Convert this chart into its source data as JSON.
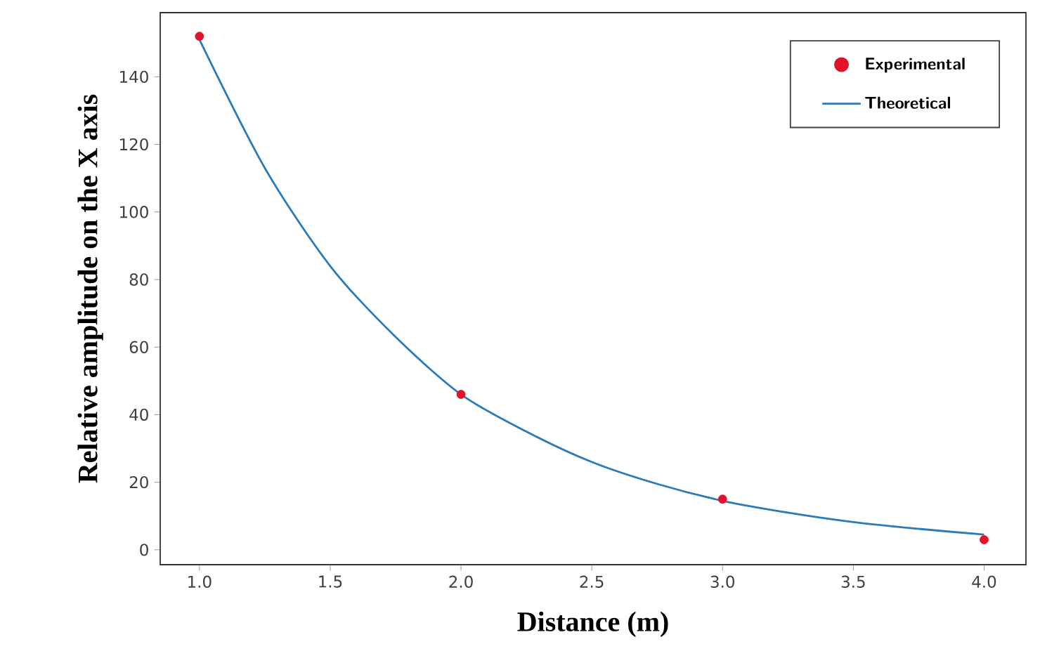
{
  "chart_data": {
    "type": "line",
    "xlabel": "Distance (m)",
    "ylabel": "Relative amplitude on the X axis",
    "xlim": [
      0.85,
      4.16
    ],
    "ylim": [
      -4.4,
      159
    ],
    "xticks": [
      {
        "value": 1.0,
        "label": "1.0"
      },
      {
        "value": 1.5,
        "label": "1.5"
      },
      {
        "value": 2.0,
        "label": "2.0"
      },
      {
        "value": 2.5,
        "label": "2.5"
      },
      {
        "value": 3.0,
        "label": "3.0"
      },
      {
        "value": 3.5,
        "label": "3.5"
      },
      {
        "value": 4.0,
        "label": "4.0"
      }
    ],
    "yticks": [
      0,
      20,
      40,
      60,
      80,
      100,
      120,
      140
    ],
    "grid": false,
    "legend": "top right",
    "series": [
      {
        "name": "Experimental",
        "type": "scatter",
        "marker": "circle",
        "color": "#e3122b",
        "x": [
          1.0,
          2.0,
          3.0,
          4.0
        ],
        "values": [
          152,
          46,
          15,
          3
        ]
      },
      {
        "name": "Theoretical",
        "marker": "none",
        "line_style": "solid",
        "color": "#2b7bba",
        "x": [
          1.0,
          1.25,
          1.5,
          1.75,
          2.0,
          2.25,
          2.5,
          2.75,
          3.0,
          3.25,
          3.5,
          3.75,
          4.0
        ],
        "values": [
          151,
          113,
          84,
          63,
          46,
          35,
          26,
          19.5,
          14.5,
          11,
          8.2,
          6.2,
          4.5
        ]
      }
    ]
  }
}
